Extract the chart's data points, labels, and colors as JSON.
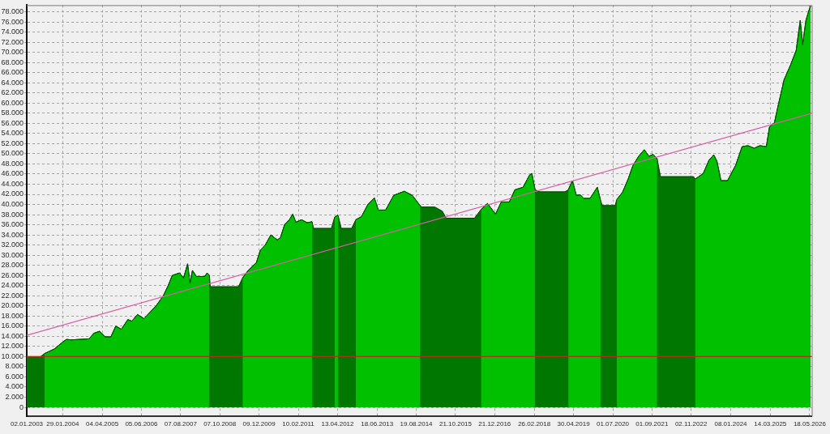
{
  "chart_data": {
    "type": "area",
    "x": [
      "2003-01-02",
      "2003-06-01",
      "2003-07-15",
      "2003-10-29",
      "2004-01-25",
      "2004-03-10",
      "2004-05-01",
      "2004-11-11",
      "2005-01-03",
      "2005-03-06",
      "2005-05-06",
      "2005-07-07",
      "2005-08-29",
      "2005-10-30",
      "2006-01-08",
      "2006-02-21",
      "2006-04-24",
      "2006-07-03",
      "2006-09-20",
      "2006-11-12",
      "2007-01-30",
      "2007-03-24",
      "2007-05-07",
      "2007-07-26",
      "2007-09-08",
      "2007-10-22",
      "2007-11-17",
      "2007-12-14",
      "2008-01-26",
      "2008-04-25",
      "2008-05-21",
      "2008-06-16",
      "2008-06-25",
      "2009-04-29",
      "2009-06-12",
      "2009-08-13",
      "2009-11-09",
      "2009-12-23",
      "2010-02-14",
      "2010-04-17",
      "2010-06-26",
      "2010-07-31",
      "2010-09-13",
      "2010-11-05",
      "2010-12-11",
      "2011-01-15",
      "2011-03-17",
      "2011-05-18",
      "2011-07-10",
      "2011-07-27",
      "2012-02-06",
      "2012-03-12",
      "2012-04-18",
      "2012-05-23",
      "2012-09-14",
      "2012-10-29",
      "2012-12-29",
      "2013-03-10",
      "2013-05-19",
      "2013-07-02",
      "2013-09-19",
      "2013-12-17",
      "2014-04-10",
      "2014-07-07",
      "2014-10-03",
      "2014-10-21",
      "2015-03-10",
      "2015-05-29",
      "2015-07-12",
      "2016-05-15",
      "2016-07-25",
      "2016-10-04",
      "2016-12-31",
      "2017-03-03",
      "2017-05-30",
      "2017-07-30",
      "2017-10-27",
      "2018-01-05",
      "2018-01-31",
      "2018-03-07",
      "2018-04-29",
      "2019-01-27",
      "2019-03-04",
      "2019-04-17",
      "2019-05-31",
      "2019-07-14",
      "2019-08-18",
      "2019-10-27",
      "2020-01-14",
      "2020-02-19",
      "2020-03-08",
      "2020-07-27",
      "2020-08-14",
      "2020-10-15",
      "2020-12-15",
      "2021-02-06",
      "2021-04-09",
      "2021-06-09",
      "2021-08-01",
      "2021-09-14",
      "2021-10-28",
      "2021-12-03",
      "2022-11-29",
      "2022-12-16",
      "2023-03-14",
      "2023-05-15",
      "2023-07-07",
      "2023-08-11",
      "2023-09-24",
      "2023-12-04",
      "2024-03-01",
      "2024-05-11",
      "2024-07-12",
      "2024-09-20",
      "2024-11-21",
      "2025-01-30",
      "2025-03-06",
      "2025-04-28",
      "2025-06-02",
      "2025-08-12",
      "2025-10-21",
      "2025-12-22",
      "2026-02-04",
      "2026-03-02",
      "2026-04-07",
      "2026-05-12",
      "2026-05-30"
    ],
    "xlim": [
      "2003-01-02",
      "2026-06-10"
    ],
    "xticks": [
      {
        "value": "2003-01-02",
        "label": "02.01.2003"
      },
      {
        "value": "2004-01-29",
        "label": "29.01.2004"
      },
      {
        "value": "2005-04-04",
        "label": "04.04.2005"
      },
      {
        "value": "2006-06-05",
        "label": "05.06.2006"
      },
      {
        "value": "2007-08-07",
        "label": "07.08.2007"
      },
      {
        "value": "2008-10-07",
        "label": "07.10.2008"
      },
      {
        "value": "2009-12-09",
        "label": "09.12.2009"
      },
      {
        "value": "2011-02-10",
        "label": "10.02.2011"
      },
      {
        "value": "2012-04-13",
        "label": "13.04.2012"
      },
      {
        "value": "2013-06-18",
        "label": "18.06.2013"
      },
      {
        "value": "2014-08-19",
        "label": "19.08.2014"
      },
      {
        "value": "2015-10-21",
        "label": "21.10.2015"
      },
      {
        "value": "2016-12-21",
        "label": "21.12.2016"
      },
      {
        "value": "2018-02-26",
        "label": "26.02.2018"
      },
      {
        "value": "2019-04-30",
        "label": "30.04.2019"
      },
      {
        "value": "2020-07-01",
        "label": "01.07.2020"
      },
      {
        "value": "2021-09-01",
        "label": "01.09.2021"
      },
      {
        "value": "2022-11-02",
        "label": "02.11.2022"
      },
      {
        "value": "2024-01-08",
        "label": "08.01.2024"
      },
      {
        "value": "2025-03-14",
        "label": "14.03.2025"
      },
      {
        "value": "2026-05-18",
        "label": "18.05.2026"
      }
    ],
    "ylim": [
      -1750,
      79300
    ],
    "yticks": [
      0,
      {
        "value": 2000,
        "label": "2.000"
      },
      {
        "value": 4000,
        "label": "4.000"
      },
      {
        "value": 6000,
        "label": "6.000"
      },
      {
        "value": 8000,
        "label": "8.000"
      },
      {
        "value": 10000,
        "label": "10.000"
      },
      {
        "value": 12000,
        "label": "12.000"
      },
      {
        "value": 14000,
        "label": "14.000"
      },
      {
        "value": 16000,
        "label": "16.000"
      },
      {
        "value": 18000,
        "label": "18.000"
      },
      {
        "value": 20000,
        "label": "20.000"
      },
      {
        "value": 22000,
        "label": "22.000"
      },
      {
        "value": 24000,
        "label": "24.000"
      },
      {
        "value": 26000,
        "label": "26.000"
      },
      {
        "value": 28000,
        "label": "28.000"
      },
      {
        "value": 30000,
        "label": "30.000"
      },
      {
        "value": 32000,
        "label": "32.000"
      },
      {
        "value": 34000,
        "label": "34.000"
      },
      {
        "value": 36000,
        "label": "36.000"
      },
      {
        "value": 38000,
        "label": "38.000"
      },
      {
        "value": 40000,
        "label": "40.000"
      },
      {
        "value": 42000,
        "label": "42.000"
      },
      {
        "value": 44000,
        "label": "44.000"
      },
      {
        "value": 46000,
        "label": "46.000"
      },
      {
        "value": 48000,
        "label": "48.000"
      },
      {
        "value": 50000,
        "label": "50.000"
      },
      {
        "value": 52000,
        "label": "52.000"
      },
      {
        "value": 54000,
        "label": "54.000"
      },
      {
        "value": 56000,
        "label": "56.000"
      },
      {
        "value": 58000,
        "label": "58.000"
      },
      {
        "value": 60000,
        "label": "60.000"
      },
      {
        "value": 62000,
        "label": "62.000"
      },
      {
        "value": 64000,
        "label": "64.000"
      },
      {
        "value": 66000,
        "label": "66.000"
      },
      {
        "value": 68000,
        "label": "68.000"
      },
      {
        "value": 70000,
        "label": "70.000"
      },
      {
        "value": 72000,
        "label": "72.000"
      },
      {
        "value": 74000,
        "label": "74.000"
      },
      {
        "value": 76000,
        "label": "76.000"
      },
      {
        "value": 78000,
        "label": "78.000"
      }
    ],
    "grid": true,
    "series": [
      {
        "color": "#007800",
        "values": [
          10000,
          10000,
          10600,
          11500,
          12800,
          13400,
          13300,
          13500,
          14600,
          15000,
          13900,
          13900,
          16000,
          15400,
          17300,
          17000,
          18300,
          17500,
          19000,
          20000,
          22000,
          24000,
          26000,
          26500,
          25500,
          28300,
          24500,
          27000,
          25800,
          25800,
          26500,
          26000,
          23800,
          23800,
          25500,
          27000,
          28500,
          31000,
          32000,
          34000,
          33000,
          33500,
          36000,
          37000,
          38100,
          36500,
          37000,
          36400,
          36600,
          35300,
          35300,
          37500,
          37900,
          35300,
          35300,
          37000,
          37600,
          40000,
          41300,
          38900,
          38900,
          41800,
          42600,
          41800,
          39700,
          39500,
          39500,
          38700,
          37300,
          37300,
          39000,
          40200,
          38100,
          40500,
          40500,
          42900,
          43400,
          45800,
          46100,
          42900,
          42500,
          42500,
          42900,
          44700,
          41800,
          41900,
          41200,
          41200,
          43400,
          40800,
          39800,
          39800,
          41000,
          42400,
          45000,
          47700,
          49500,
          50800,
          49500,
          49900,
          49000,
          45500,
          45500,
          45000,
          46100,
          48700,
          49800,
          48500,
          44700,
          44700,
          47700,
          51400,
          51600,
          51100,
          51600,
          51400,
          55300,
          56100,
          59000,
          64600,
          67500,
          70400,
          76300,
          71500,
          76300,
          78400,
          79200
        ]
      },
      {
        "color": "#00c000",
        "values": [
          null,
          null,
          10600,
          11500,
          12800,
          13400,
          13300,
          13500,
          14600,
          15000,
          13900,
          13900,
          16000,
          15400,
          17300,
          17000,
          18300,
          17500,
          19000,
          20000,
          22000,
          24000,
          26000,
          26500,
          25500,
          28300,
          24500,
          27000,
          25800,
          25800,
          26500,
          26000,
          null,
          null,
          25500,
          27000,
          28500,
          31000,
          32000,
          34000,
          33000,
          33500,
          36000,
          37000,
          38100,
          36500,
          37000,
          36400,
          36600,
          null,
          null,
          37500,
          37900,
          null,
          null,
          37000,
          37600,
          40000,
          41300,
          38900,
          38900,
          41800,
          42600,
          41800,
          39700,
          null,
          null,
          null,
          null,
          null,
          39000,
          40200,
          38100,
          40500,
          40500,
          42900,
          43400,
          45800,
          46100,
          42900,
          null,
          null,
          42900,
          44700,
          41800,
          41900,
          41200,
          41200,
          43400,
          40800,
          null,
          null,
          41000,
          42400,
          45000,
          47700,
          49500,
          50800,
          49500,
          49900,
          49000,
          null,
          null,
          45000,
          46100,
          48700,
          49800,
          48500,
          44700,
          44700,
          47700,
          51400,
          51600,
          51100,
          51600,
          51400,
          55300,
          56100,
          59000,
          64600,
          67500,
          70400,
          76300,
          71500,
          76300,
          78400,
          79200
        ]
      },
      {
        "type": "line",
        "color": "#d65fa8",
        "x": [
          "2003-01-02",
          "2026-06-10"
        ],
        "values": [
          14200,
          58000
        ]
      }
    ],
    "ref_lines": [
      {
        "axis": "y",
        "value": 10000,
        "color": "#b03018"
      }
    ]
  }
}
